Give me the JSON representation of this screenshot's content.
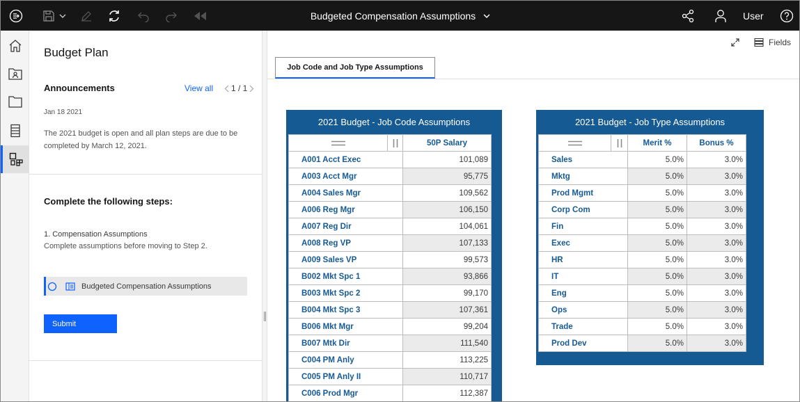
{
  "topbar": {
    "title": "Budgeted Compensation Assumptions",
    "user_label": "User"
  },
  "panel": {
    "title": "Budget Plan",
    "announcements": {
      "heading": "Announcements",
      "view_all": "View all",
      "pager": "1 / 1",
      "date": "Jan 18 2021",
      "text": "The 2021 budget is open and all plan steps are due to be completed by March 12, 2021."
    },
    "steps": {
      "heading": "Complete the following steps:",
      "step1_title": "1. Compensation Assumptions",
      "step1_desc": "Complete assumptions before moving to Step 2.",
      "task_label": "Budgeted Compensation Assumptions",
      "submit_label": "Submit"
    }
  },
  "main": {
    "fields_label": "Fields",
    "tab_label": "Job Code and Job Type Assumptions",
    "job_code_table": {
      "title": "2021 Budget - Job Code Assumptions",
      "column": "50P Salary",
      "rows": [
        {
          "label": "A001 Acct Exec",
          "value": "101,089"
        },
        {
          "label": "A003 Acct Mgr",
          "value": "95,775"
        },
        {
          "label": "A004 Sales Mgr",
          "value": "109,562"
        },
        {
          "label": "A006 Reg Mgr",
          "value": "106,150"
        },
        {
          "label": "A007 Reg Dir",
          "value": "104,061"
        },
        {
          "label": "A008 Reg VP",
          "value": "107,133"
        },
        {
          "label": "A009 Sales VP",
          "value": "99,573"
        },
        {
          "label": "B002 Mkt Spc 1",
          "value": "93,866"
        },
        {
          "label": "B003 Mkt Spc 2",
          "value": "99,170"
        },
        {
          "label": "B004 Mkt Spc 3",
          "value": "107,361"
        },
        {
          "label": "B006 Mkt Mgr",
          "value": "99,204"
        },
        {
          "label": "B007 Mtk Dir",
          "value": "111,540"
        },
        {
          "label": "C004 PM Anly",
          "value": "113,225"
        },
        {
          "label": "C005 PM Anly II",
          "value": "110,717"
        },
        {
          "label": "C006 Prod Mgr",
          "value": "112,387"
        }
      ]
    },
    "job_type_table": {
      "title": "2021 Budget - Job Type Assumptions",
      "col1": "Merit %",
      "col2": "Bonus %",
      "rows": [
        {
          "label": "Sales",
          "merit": "5.0%",
          "bonus": "3.0%"
        },
        {
          "label": "Mktg",
          "merit": "5.0%",
          "bonus": "3.0%"
        },
        {
          "label": "Prod Mgmt",
          "merit": "5.0%",
          "bonus": "3.0%"
        },
        {
          "label": "Corp Com",
          "merit": "5.0%",
          "bonus": "3.0%"
        },
        {
          "label": "Fin",
          "merit": "5.0%",
          "bonus": "3.0%"
        },
        {
          "label": "Exec",
          "merit": "5.0%",
          "bonus": "3.0%"
        },
        {
          "label": "HR",
          "merit": "5.0%",
          "bonus": "3.0%"
        },
        {
          "label": "IT",
          "merit": "5.0%",
          "bonus": "3.0%"
        },
        {
          "label": "Eng",
          "merit": "5.0%",
          "bonus": "3.0%"
        },
        {
          "label": "Ops",
          "merit": "5.0%",
          "bonus": "3.0%"
        },
        {
          "label": "Trade",
          "merit": "5.0%",
          "bonus": "3.0%"
        },
        {
          "label": "Prod Dev",
          "merit": "5.0%",
          "bonus": "3.0%"
        }
      ]
    }
  },
  "colors": {
    "topbar_bg": "#161616",
    "accent": "#0f62fe",
    "table_frame": "#165a94"
  }
}
